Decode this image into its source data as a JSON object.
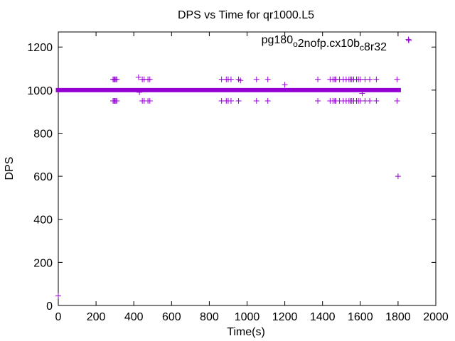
{
  "chart_data": {
    "type": "scatter",
    "title": "DPS vs Time for qr1000.L5",
    "xlabel": "Time(s)",
    "ylabel": "DPS",
    "xlim": [
      0,
      2000
    ],
    "ylim": [
      0,
      1270
    ],
    "x_ticks": [
      "0",
      "200",
      "400",
      "600",
      "800",
      "1000",
      "1200",
      "1400",
      "1600",
      "1800",
      "2000"
    ],
    "y_ticks": [
      "0",
      "200",
      "400",
      "600",
      "800",
      "1000",
      "1200"
    ],
    "grid": false,
    "legend_position": "top-right",
    "series_color": "#9400d3",
    "marker": "plus",
    "legend": {
      "parts": [
        {
          "text": "pg180",
          "sub": false
        },
        {
          "text": "o",
          "sub": true
        },
        {
          "text": "2nofp.cx10b",
          "sub": false
        },
        {
          "text": "c",
          "sub": true
        },
        {
          "text": "8r32",
          "sub": false
        }
      ]
    },
    "series": [
      {
        "dense_band": {
          "x_start": 2,
          "x_end": 1800,
          "y": 1000
        },
        "points": [
          {
            "x": 0,
            "y": 45
          },
          {
            "x": 290,
            "y": 1050
          },
          {
            "x": 295,
            "y": 1050
          },
          {
            "x": 300,
            "y": 1050
          },
          {
            "x": 305,
            "y": 1050
          },
          {
            "x": 310,
            "y": 1050
          },
          {
            "x": 290,
            "y": 950
          },
          {
            "x": 295,
            "y": 950
          },
          {
            "x": 300,
            "y": 950
          },
          {
            "x": 305,
            "y": 950
          },
          {
            "x": 310,
            "y": 950
          },
          {
            "x": 425,
            "y": 1060
          },
          {
            "x": 430,
            "y": 990
          },
          {
            "x": 445,
            "y": 1050
          },
          {
            "x": 455,
            "y": 1050
          },
          {
            "x": 475,
            "y": 1050
          },
          {
            "x": 485,
            "y": 1050
          },
          {
            "x": 445,
            "y": 950
          },
          {
            "x": 455,
            "y": 950
          },
          {
            "x": 475,
            "y": 950
          },
          {
            "x": 485,
            "y": 950
          },
          {
            "x": 865,
            "y": 1050
          },
          {
            "x": 890,
            "y": 1050
          },
          {
            "x": 900,
            "y": 1050
          },
          {
            "x": 915,
            "y": 1050
          },
          {
            "x": 865,
            "y": 950
          },
          {
            "x": 890,
            "y": 950
          },
          {
            "x": 900,
            "y": 950
          },
          {
            "x": 915,
            "y": 950
          },
          {
            "x": 955,
            "y": 1050
          },
          {
            "x": 965,
            "y": 1045
          },
          {
            "x": 955,
            "y": 950
          },
          {
            "x": 1050,
            "y": 1050
          },
          {
            "x": 1050,
            "y": 950
          },
          {
            "x": 1110,
            "y": 1050
          },
          {
            "x": 1110,
            "y": 950
          },
          {
            "x": 1200,
            "y": 1025
          },
          {
            "x": 1375,
            "y": 1050
          },
          {
            "x": 1375,
            "y": 950
          },
          {
            "x": 1440,
            "y": 1050
          },
          {
            "x": 1455,
            "y": 1050
          },
          {
            "x": 1465,
            "y": 1050
          },
          {
            "x": 1470,
            "y": 1050
          },
          {
            "x": 1490,
            "y": 1050
          },
          {
            "x": 1510,
            "y": 1050
          },
          {
            "x": 1525,
            "y": 1050
          },
          {
            "x": 1540,
            "y": 1050
          },
          {
            "x": 1550,
            "y": 1050
          },
          {
            "x": 1555,
            "y": 1050
          },
          {
            "x": 1565,
            "y": 1050
          },
          {
            "x": 1580,
            "y": 1050
          },
          {
            "x": 1590,
            "y": 1050
          },
          {
            "x": 1600,
            "y": 1050
          },
          {
            "x": 1625,
            "y": 1050
          },
          {
            "x": 1650,
            "y": 1050
          },
          {
            "x": 1685,
            "y": 1050
          },
          {
            "x": 1440,
            "y": 950
          },
          {
            "x": 1455,
            "y": 950
          },
          {
            "x": 1465,
            "y": 950
          },
          {
            "x": 1470,
            "y": 950
          },
          {
            "x": 1490,
            "y": 950
          },
          {
            "x": 1510,
            "y": 950
          },
          {
            "x": 1525,
            "y": 950
          },
          {
            "x": 1540,
            "y": 950
          },
          {
            "x": 1550,
            "y": 950
          },
          {
            "x": 1555,
            "y": 950
          },
          {
            "x": 1565,
            "y": 950
          },
          {
            "x": 1580,
            "y": 950
          },
          {
            "x": 1590,
            "y": 950
          },
          {
            "x": 1600,
            "y": 950
          },
          {
            "x": 1625,
            "y": 950
          },
          {
            "x": 1650,
            "y": 950
          },
          {
            "x": 1685,
            "y": 950
          },
          {
            "x": 1610,
            "y": 985
          },
          {
            "x": 1795,
            "y": 1050
          },
          {
            "x": 1795,
            "y": 950
          },
          {
            "x": 1800,
            "y": 600
          },
          {
            "x": 1855,
            "y": 1235
          }
        ]
      }
    ]
  }
}
